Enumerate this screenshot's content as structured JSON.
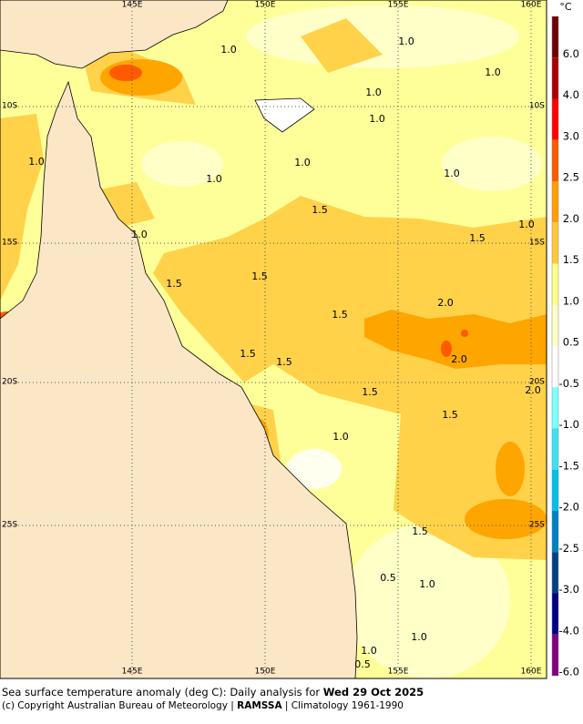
{
  "map": {
    "lon_labels": [
      "145E",
      "150E",
      "155E",
      "160E"
    ],
    "lat_labels": [
      "10S",
      "15S",
      "20S",
      "25S"
    ],
    "contour_labels": [
      "1.0",
      "1.0",
      "1.0",
      "1.0",
      "1.0",
      "1.0",
      "1.0",
      "1.0",
      "1.0",
      "1.0",
      "1.0",
      "1.5",
      "1.5",
      "1.5",
      "1.5",
      "2.0",
      "1.5",
      "1.5",
      "1.5",
      "2.0",
      "1.5",
      "2.0",
      "1.5",
      "1.0",
      "1.5",
      "0.5",
      "1.0",
      "1.0",
      "1.0",
      "0.5"
    ],
    "colorbar": {
      "unit": "°C",
      "labels": [
        "6.0",
        "4.0",
        "3.0",
        "2.5",
        "2.0",
        "1.5",
        "1.0",
        "0.5",
        "-0.5",
        "-1.0",
        "-1.5",
        "-2.0",
        "-2.5",
        "-3.0",
        "-4.0",
        "-6.0"
      ],
      "colors": [
        "#6e0000",
        "#a80000",
        "#ff0000",
        "#ff5a00",
        "#ffa000",
        "#ffc83c",
        "#ffff8c",
        "#ffffc8",
        "#ffffff",
        "#80ffff",
        "#40e0f0",
        "#00c0e8",
        "#0080c0",
        "#004080",
        "#000080",
        "#800080"
      ]
    },
    "caption": {
      "line1": "Sea surface temperature anomaly (deg C): Daily analysis for ",
      "date": "Wed 29 Oct 2025",
      "line2a": "(c) Copyright Australian Bureau of Meteorology | ",
      "agency": "RAMSSA",
      "line2b": " | Climatology 1961-1990"
    }
  }
}
